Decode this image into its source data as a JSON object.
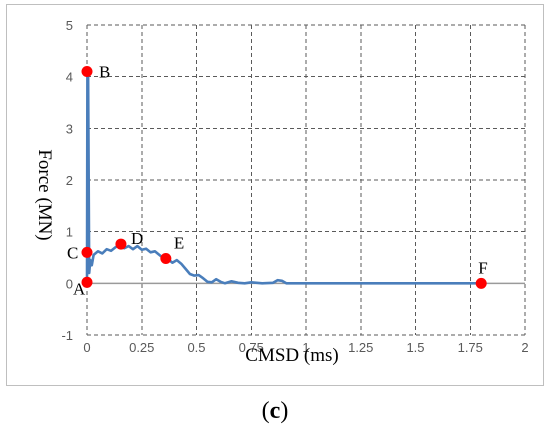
{
  "chart_data": {
    "type": "line",
    "title": "",
    "xlabel": "CMSD (ms)",
    "ylabel": "Force (MN)",
    "xlim": [
      0,
      2
    ],
    "ylim": [
      -1,
      5
    ],
    "x_ticks": [
      "0",
      "0.25",
      "0.5",
      "0.75",
      "1",
      "1.25",
      "1.5",
      "1.75",
      "2"
    ],
    "y_ticks": [
      "-1",
      "0",
      "1",
      "2",
      "3",
      "4",
      "5"
    ],
    "grid": "dashed",
    "series": [
      {
        "color": "#4a7ebb",
        "points": [
          [
            0.0,
            0.02
          ],
          [
            0.002,
            4.1
          ],
          [
            0.005,
            4.1
          ],
          [
            0.01,
            0.2
          ],
          [
            0.015,
            0.45
          ],
          [
            0.022,
            0.35
          ],
          [
            0.03,
            0.55
          ],
          [
            0.05,
            0.62
          ],
          [
            0.07,
            0.58
          ],
          [
            0.09,
            0.66
          ],
          [
            0.11,
            0.63
          ],
          [
            0.13,
            0.7
          ],
          [
            0.155,
            0.76
          ],
          [
            0.17,
            0.68
          ],
          [
            0.19,
            0.72
          ],
          [
            0.21,
            0.66
          ],
          [
            0.23,
            0.72
          ],
          [
            0.25,
            0.65
          ],
          [
            0.27,
            0.67
          ],
          [
            0.29,
            0.6
          ],
          [
            0.31,
            0.62
          ],
          [
            0.33,
            0.55
          ],
          [
            0.345,
            0.5
          ],
          [
            0.36,
            0.48
          ],
          [
            0.375,
            0.45
          ],
          [
            0.39,
            0.4
          ],
          [
            0.41,
            0.45
          ],
          [
            0.43,
            0.38
          ],
          [
            0.45,
            0.28
          ],
          [
            0.47,
            0.18
          ],
          [
            0.49,
            0.15
          ],
          [
            0.51,
            0.16
          ],
          [
            0.53,
            0.1
          ],
          [
            0.55,
            0.03
          ],
          [
            0.57,
            0.02
          ],
          [
            0.59,
            0.08
          ],
          [
            0.61,
            0.03
          ],
          [
            0.63,
            0.0
          ],
          [
            0.66,
            0.04
          ],
          [
            0.69,
            0.01
          ],
          [
            0.72,
            0.0
          ],
          [
            0.75,
            0.02
          ],
          [
            0.8,
            0.0
          ],
          [
            0.85,
            0.01
          ],
          [
            0.87,
            0.06
          ],
          [
            0.89,
            0.05
          ],
          [
            0.91,
            0.0
          ],
          [
            1.0,
            0.0
          ],
          [
            1.25,
            0.0
          ],
          [
            1.5,
            0.0
          ],
          [
            1.75,
            0.0
          ],
          [
            1.8,
            0.0
          ]
        ]
      }
    ],
    "annotations": [
      {
        "label": "A",
        "x": 0.0,
        "y": 0.02
      },
      {
        "label": "B",
        "x": 0.0,
        "y": 4.1
      },
      {
        "label": "C",
        "x": 0.0,
        "y": 0.6
      },
      {
        "label": "D",
        "x": 0.155,
        "y": 0.76
      },
      {
        "label": "E",
        "x": 0.36,
        "y": 0.48
      },
      {
        "label": "F",
        "x": 1.8,
        "y": 0.0
      }
    ],
    "marker_color": "#ff0000"
  },
  "panel_label": {
    "open": "(",
    "letter": "c",
    "close": ")"
  }
}
